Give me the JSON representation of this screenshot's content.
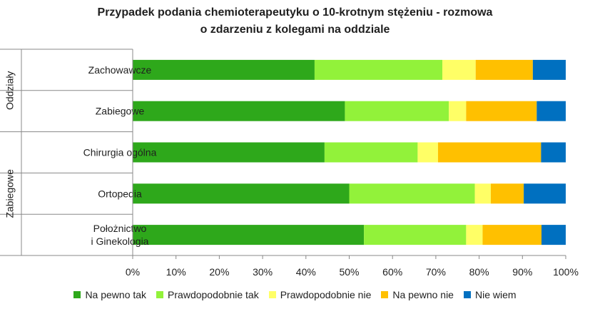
{
  "chart_data": {
    "type": "bar",
    "orientation": "horizontal",
    "stacked": "percent",
    "title": "Przypadek podania chemioterapeutyku o 10-krotnym stężeniu - rozmowa o zdarzeniu z kolegami na oddziale",
    "title_lines": [
      "Przypadek podania  chemioterapeutyku o 10-krotnym stężeniu - rozmowa",
      "o zdarzeniu z kolegami na oddziale"
    ],
    "groups": [
      {
        "label": "Oddziały",
        "categories": [
          "Zachowawcze",
          "Zabiegowe"
        ]
      },
      {
        "label": "Zabiegowe",
        "categories": [
          "Chirurgia ogólna",
          "Ortopedia",
          "Położnictwo i Ginekologia"
        ]
      }
    ],
    "categories": [
      "Zachowawcze",
      "Zabiegowe",
      "Chirurgia ogólna",
      "Ortopedia",
      "Położnictwo i Ginekologia"
    ],
    "category_label_lines": [
      [
        "Zachowawcze"
      ],
      [
        "Zabiegowe"
      ],
      [
        "Chirurgia ogólna"
      ],
      [
        "Ortopedia"
      ],
      [
        "Położnictwo",
        "i Ginekologia"
      ]
    ],
    "series": [
      {
        "name": "Na pewno tak",
        "color": "#2EA81B",
        "values": [
          42,
          49,
          44.3,
          50,
          53.4
        ]
      },
      {
        "name": "Prawdopodobnie tak",
        "color": "#92F23A",
        "values": [
          29.5,
          24,
          21.5,
          29,
          23.6
        ]
      },
      {
        "name": "Prawdopodobnie nie",
        "color": "#FFFF66",
        "values": [
          7.7,
          4,
          4.7,
          3.7,
          3.8
        ]
      },
      {
        "name": "Na pewno nie",
        "color": "#FFC000",
        "values": [
          13.2,
          16.3,
          23.8,
          7.6,
          13.6
        ]
      },
      {
        "name": "Nie wiem",
        "color": "#0070C0",
        "values": [
          7.6,
          6.7,
          5.7,
          9.7,
          5.6
        ]
      }
    ],
    "xlim": [
      0,
      100
    ],
    "xticks": [
      "0%",
      "10%",
      "20%",
      "30%",
      "40%",
      "50%",
      "60%",
      "70%",
      "80%",
      "90%",
      "100%"
    ],
    "grid": false,
    "legend_position": "bottom"
  }
}
